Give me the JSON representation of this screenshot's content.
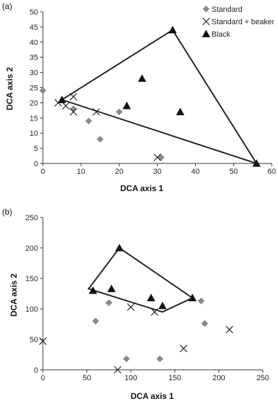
{
  "chart_data": [
    {
      "type": "scatter",
      "panel_label": "(a)",
      "xlabel": "DCA axis 1",
      "ylabel": "DCA axis 2",
      "xlim": [
        0,
        60
      ],
      "ylim": [
        0,
        50
      ],
      "xticks": [
        0,
        10,
        20,
        30,
        40,
        50,
        60
      ],
      "yticks": [
        0,
        5,
        10,
        15,
        20,
        25,
        30,
        35,
        40,
        45,
        50
      ],
      "legend": {
        "placement": "top-right",
        "entries": [
          "Standard",
          "Standard + beaker",
          "Black"
        ]
      },
      "series": [
        {
          "name": "Standard",
          "marker": "diamond",
          "color": "#8a8a8a",
          "points": [
            [
              0,
              24
            ],
            [
              8,
              18
            ],
            [
              12,
              14
            ],
            [
              15,
              8
            ],
            [
              20,
              17
            ],
            [
              31,
              2
            ]
          ]
        },
        {
          "name": "Standard + beaker",
          "marker": "x",
          "color": "#222222",
          "points": [
            [
              4,
              20
            ],
            [
              6,
              19
            ],
            [
              8,
              22
            ],
            [
              8,
              17
            ],
            [
              14,
              17
            ],
            [
              30,
              2
            ]
          ]
        },
        {
          "name": "Black",
          "marker": "triangle",
          "color": "#111111",
          "points": [
            [
              5,
              21
            ],
            [
              22,
              19
            ],
            [
              26,
              28
            ],
            [
              34,
              44
            ],
            [
              36,
              17
            ],
            [
              56,
              0
            ]
          ]
        }
      ],
      "hull": [
        [
          5,
          21
        ],
        [
          34,
          44
        ],
        [
          56,
          0
        ]
      ]
    },
    {
      "type": "scatter",
      "panel_label": "(b)",
      "xlabel": "DCA axis 1",
      "ylabel": "DCA axis 2",
      "xlim": [
        0,
        250
      ],
      "ylim": [
        0,
        250
      ],
      "xticks": [
        0,
        50,
        100,
        150,
        200,
        250
      ],
      "yticks": [
        0,
        50,
        100,
        150,
        200,
        250
      ],
      "series": [
        {
          "name": "Standard",
          "marker": "diamond",
          "color": "#8a8a8a",
          "points": [
            [
              60,
              80
            ],
            [
              75,
              110
            ],
            [
              95,
              18
            ],
            [
              133,
              18
            ],
            [
              180,
              113
            ],
            [
              184,
              76
            ]
          ]
        },
        {
          "name": "Standard + beaker",
          "marker": "x",
          "color": "#222222",
          "points": [
            [
              0,
              47
            ],
            [
              85,
              0
            ],
            [
              100,
              103
            ],
            [
              127,
              95
            ],
            [
              160,
              35
            ],
            [
              212,
              66
            ]
          ]
        },
        {
          "name": "Black",
          "marker": "triangle",
          "color": "#111111",
          "points": [
            [
              57,
              130
            ],
            [
              78,
              133
            ],
            [
              87,
              200
            ],
            [
              123,
              118
            ],
            [
              136,
              105
            ],
            [
              170,
              118
            ]
          ]
        }
      ],
      "hull": [
        [
          52,
          133
        ],
        [
          87,
          200
        ],
        [
          170,
          118
        ],
        [
          136,
          95
        ]
      ]
    }
  ]
}
